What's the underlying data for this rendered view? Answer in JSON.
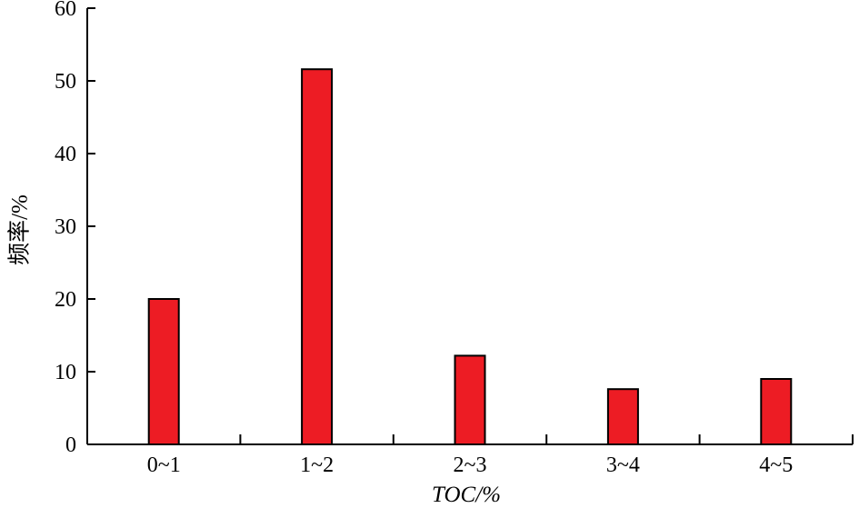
{
  "chart_data": {
    "type": "bar",
    "categories": [
      "0~1",
      "1~2",
      "2~3",
      "3~4",
      "4~5"
    ],
    "values": [
      20,
      51.6,
      12.2,
      7.6,
      9
    ],
    "xlabel": "TOC/%",
    "ylabel": "频率/%",
    "ylim": [
      0,
      60
    ],
    "yticks": [
      0,
      10,
      20,
      30,
      40,
      50,
      60
    ],
    "grid": false,
    "bar_color": "#ed1c24"
  }
}
